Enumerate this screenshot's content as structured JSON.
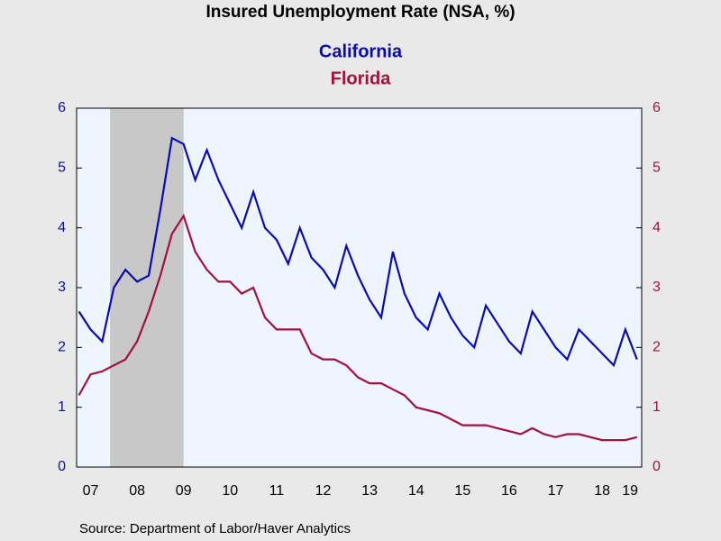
{
  "chart_data": {
    "type": "line",
    "title": "Insured Unemployment Rate (NSA, %)",
    "source": "Source:  Department of Labor/Haver Analytics",
    "x": [
      2007.25,
      2007.5,
      2007.75,
      2008.0,
      2008.25,
      2008.5,
      2008.75,
      2009.0,
      2009.25,
      2009.5,
      2009.75,
      2010.0,
      2010.25,
      2010.5,
      2010.75,
      2011.0,
      2011.25,
      2011.5,
      2011.75,
      2012.0,
      2012.25,
      2012.5,
      2012.75,
      2013.0,
      2013.25,
      2013.5,
      2013.75,
      2014.0,
      2014.25,
      2014.5,
      2014.75,
      2015.0,
      2015.25,
      2015.5,
      2015.75,
      2016.0,
      2016.25,
      2016.5,
      2016.75,
      2017.0,
      2017.25,
      2017.5,
      2017.75,
      2018.0,
      2018.25,
      2018.5,
      2018.75,
      2019.0,
      2019.25
    ],
    "series": [
      {
        "name": "California",
        "color": "#0b0bb4",
        "axis": "y",
        "values": [
          2.6,
          2.3,
          2.1,
          3.0,
          3.3,
          3.1,
          3.2,
          4.3,
          5.5,
          5.4,
          4.8,
          5.3,
          4.8,
          4.4,
          4.0,
          4.6,
          4.0,
          3.8,
          3.4,
          4.0,
          3.5,
          3.3,
          3.0,
          3.7,
          3.2,
          2.8,
          2.5,
          3.6,
          2.9,
          2.5,
          2.3,
          2.9,
          2.5,
          2.2,
          2.0,
          2.7,
          2.4,
          2.1,
          1.9,
          2.6,
          2.3,
          2.0,
          1.8,
          2.3,
          2.1,
          1.9,
          1.7,
          2.3,
          1.8
        ]
      },
      {
        "name": "Florida",
        "color": "#a5103c",
        "axis": "y2",
        "values": [
          1.2,
          1.55,
          1.6,
          1.7,
          1.8,
          2.1,
          2.6,
          3.2,
          3.9,
          4.2,
          3.6,
          3.3,
          3.1,
          3.1,
          2.9,
          3.0,
          2.5,
          2.3,
          2.3,
          2.3,
          1.9,
          1.8,
          1.8,
          1.7,
          1.5,
          1.4,
          1.4,
          1.3,
          1.2,
          1.0,
          0.95,
          0.9,
          0.8,
          0.7,
          0.7,
          0.7,
          0.65,
          0.6,
          0.55,
          0.65,
          0.55,
          0.5,
          0.55,
          0.55,
          0.5,
          0.45,
          0.45,
          0.45,
          0.5
        ]
      }
    ],
    "recession": [
      2007.92,
      2009.5
    ],
    "xlim": [
      2007.2,
      2019.35
    ],
    "xticks": [
      {
        "value": 2007.5,
        "label": "07"
      },
      {
        "value": 2008.5,
        "label": "08"
      },
      {
        "value": 2009.5,
        "label": "09"
      },
      {
        "value": 2010.5,
        "label": "10"
      },
      {
        "value": 2011.5,
        "label": "11"
      },
      {
        "value": 2012.5,
        "label": "12"
      },
      {
        "value": 2013.5,
        "label": "13"
      },
      {
        "value": 2014.5,
        "label": "14"
      },
      {
        "value": 2015.5,
        "label": "15"
      },
      {
        "value": 2016.5,
        "label": "16"
      },
      {
        "value": 2017.5,
        "label": "17"
      },
      {
        "value": 2018.5,
        "label": "18"
      },
      {
        "value": 2019.1,
        "label": "19"
      }
    ],
    "ylim": [
      0,
      6
    ],
    "yticks": [
      0,
      1,
      2,
      3,
      4,
      5,
      6
    ],
    "y2lim": [
      0,
      6
    ],
    "y2ticks": [
      0,
      1,
      2,
      3,
      4,
      5,
      6
    ]
  }
}
